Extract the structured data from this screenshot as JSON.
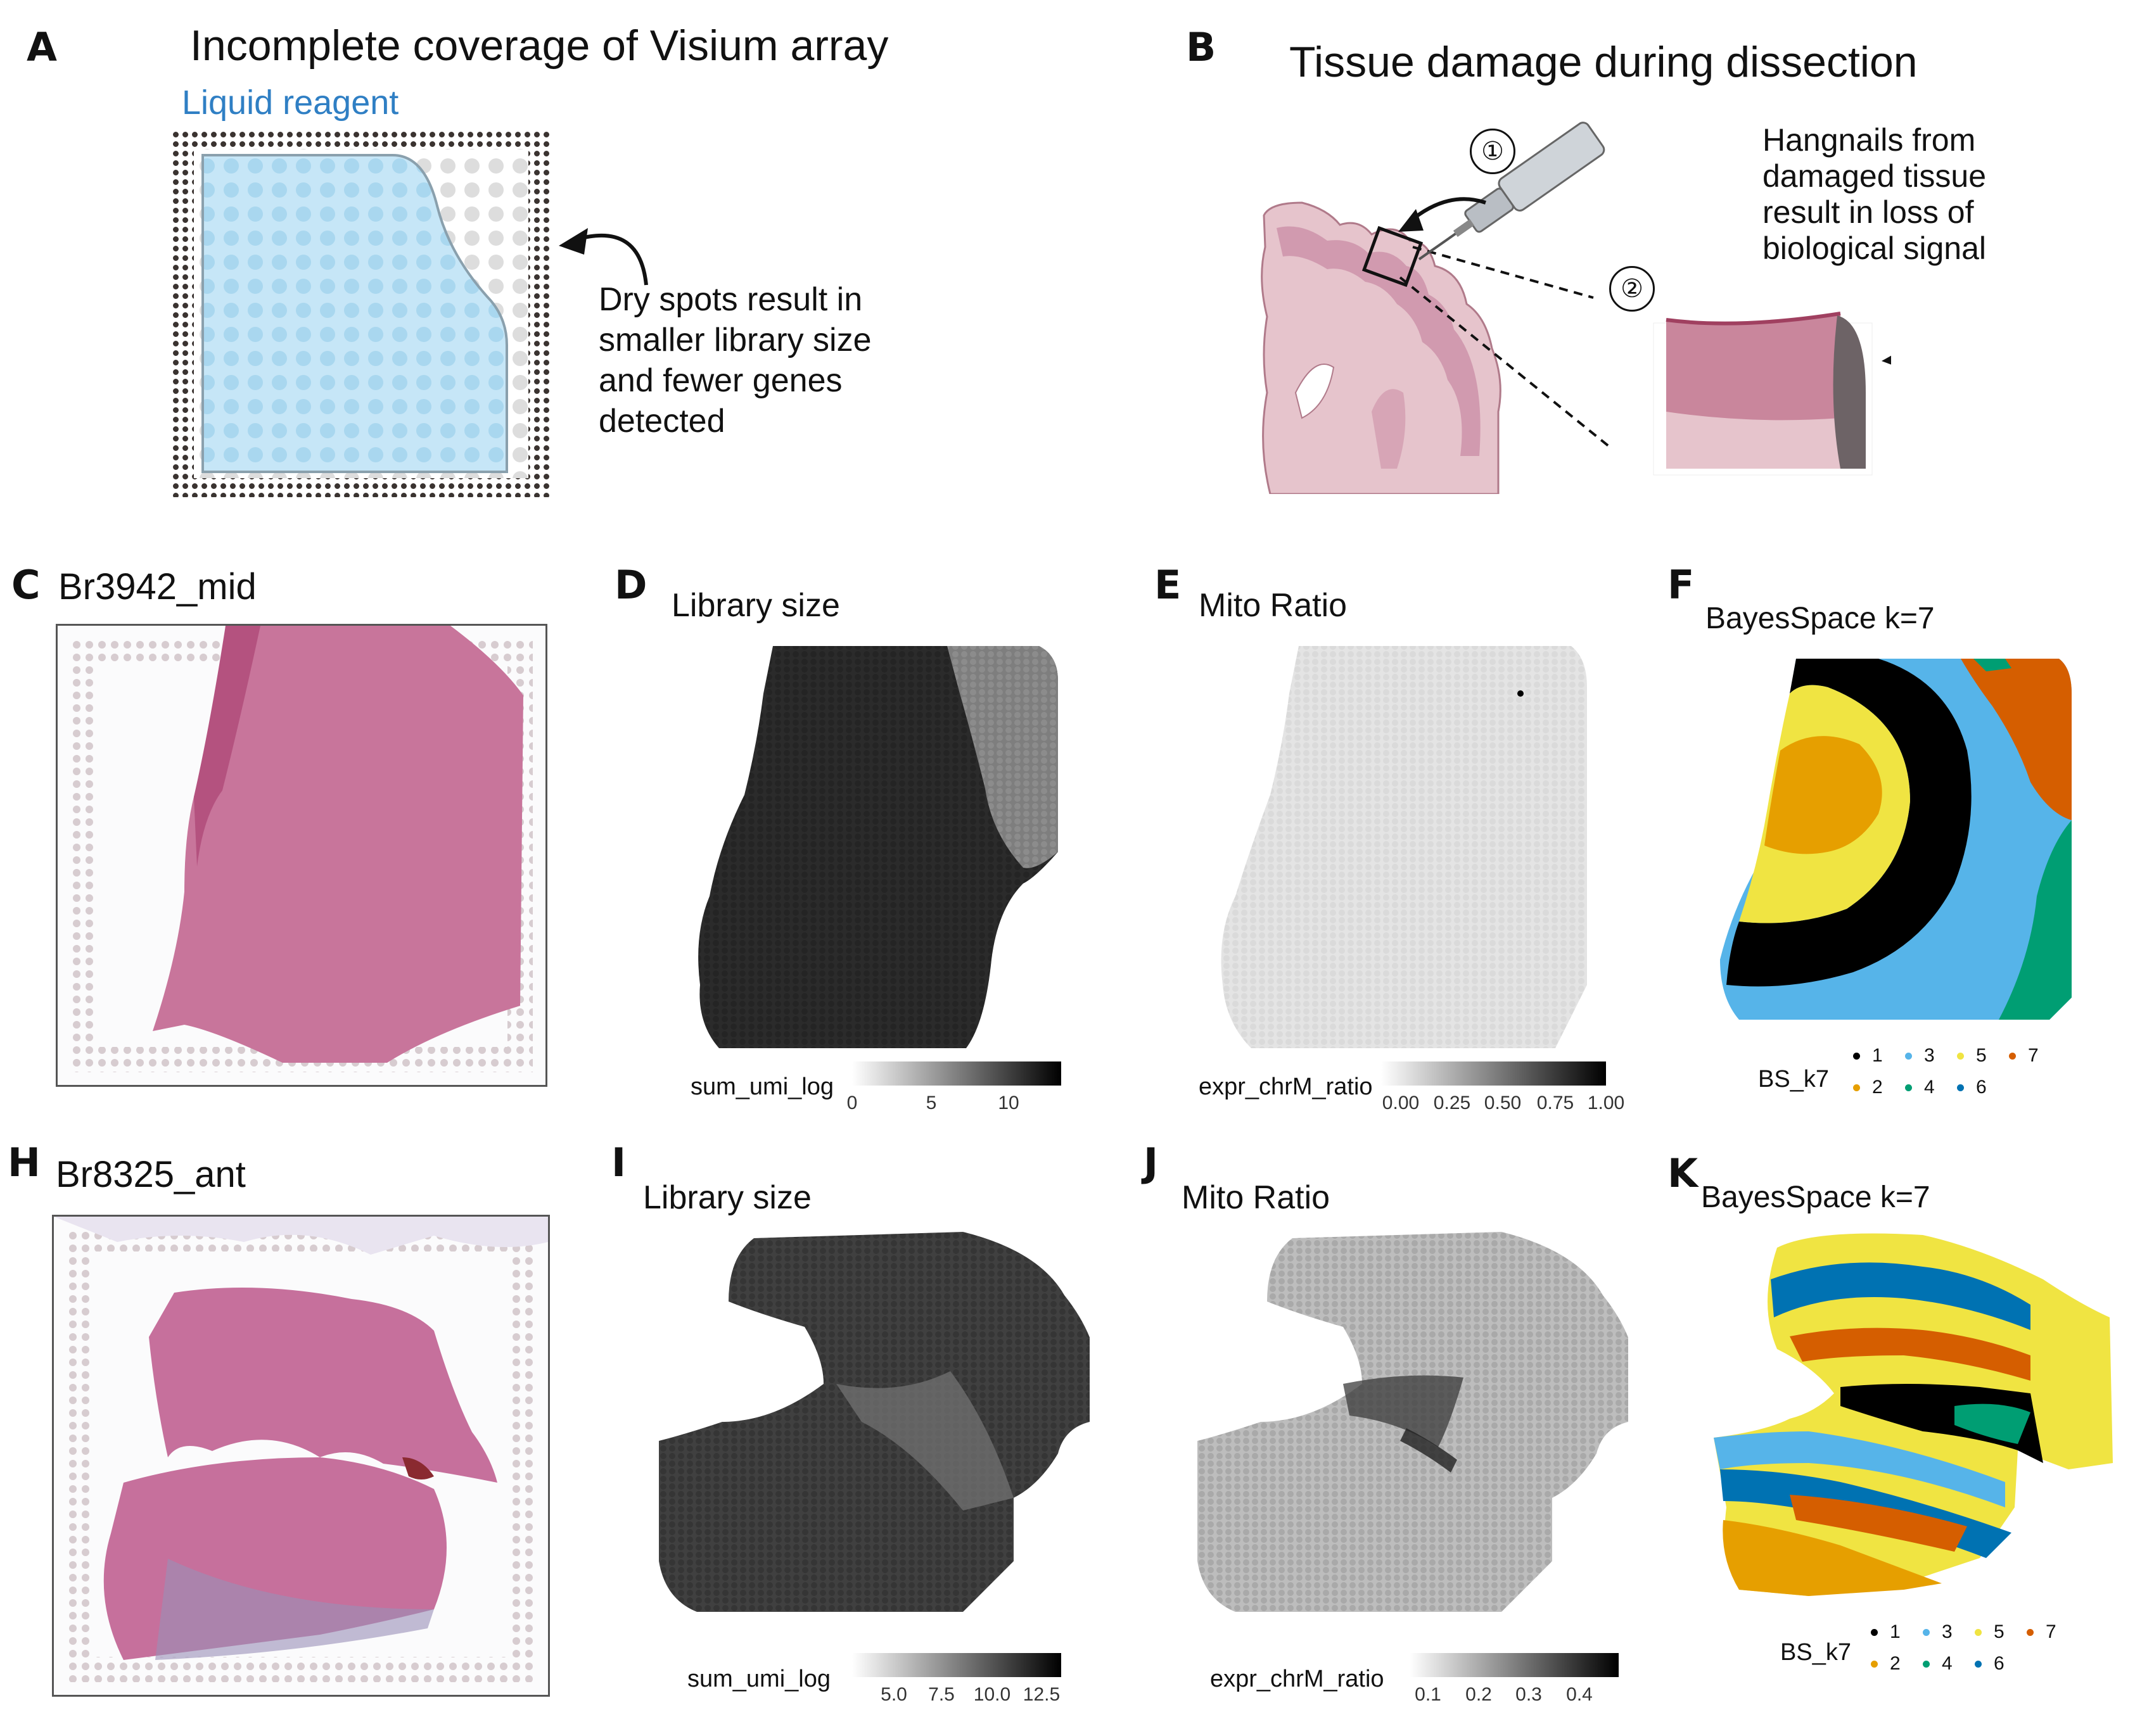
{
  "panels": {
    "A": {
      "letter": "A",
      "title": "Incomplete coverage of Visium array",
      "reagent_label": "Liquid reagent",
      "note_lines": [
        "Dry spots result in",
        "smaller library size",
        "and fewer genes",
        "detected"
      ]
    },
    "B": {
      "letter": "B",
      "title": "Tissue damage during dissection",
      "step1": "①",
      "step2": "②",
      "note_lines": [
        "Hangnails from",
        "damaged tissue",
        "result in loss of",
        "biological signal"
      ]
    },
    "C": {
      "letter": "C",
      "title": "Br3942_mid"
    },
    "D": {
      "letter": "D",
      "title": "Library size",
      "legend_title": "sum_umi_log",
      "ticks": [
        "0",
        "5",
        "10"
      ]
    },
    "E": {
      "letter": "E",
      "title": "Mito Ratio",
      "legend_title": "expr_chrM_ratio",
      "ticks": [
        "0.00",
        "0.25",
        "0.50",
        "0.75",
        "1.00"
      ]
    },
    "F": {
      "letter": "F",
      "title": "BayesSpace k=7",
      "legend_title": "BS_k7"
    },
    "H": {
      "letter": "H",
      "title": "Br8325_ant"
    },
    "I": {
      "letter": "I",
      "title": "Library size",
      "legend_title": "sum_umi_log",
      "ticks": [
        "5.0",
        "7.5",
        "10.0",
        "12.5"
      ]
    },
    "J": {
      "letter": "J",
      "title": "Mito Ratio",
      "legend_title": "expr_chrM_ratio",
      "ticks": [
        "0.1",
        "0.2",
        "0.3",
        "0.4"
      ]
    },
    "K": {
      "letter": "K",
      "title": "BayesSpace k=7",
      "legend_title": "BS_k7"
    }
  },
  "clusters": [
    {
      "label": "1",
      "color": "#000000"
    },
    {
      "label": "2",
      "color": "#E69F00"
    },
    {
      "label": "3",
      "color": "#56B4E9"
    },
    {
      "label": "4",
      "color": "#009E73"
    },
    {
      "label": "5",
      "color": "#F0E442"
    },
    {
      "label": "6",
      "color": "#0072B2"
    },
    {
      "label": "7",
      "color": "#D55E00"
    }
  ],
  "colors": {
    "reagent_text": "#2f7fc4",
    "reagent_fill": "#c6e6f7",
    "tissue_pink": "#c07897",
    "tissue_light": "#e6c4cc"
  }
}
